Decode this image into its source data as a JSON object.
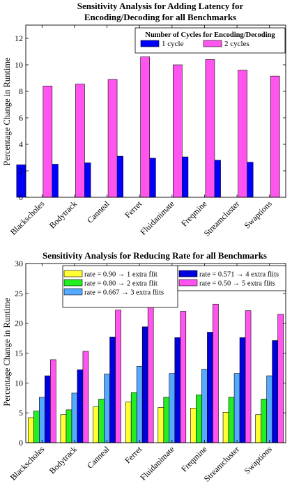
{
  "colors": {
    "axis": "#000000",
    "grid_tick": "#000000",
    "bar_stroke": "#000000"
  },
  "chart_data": [
    {
      "type": "bar",
      "title_lines": [
        "Sensitivity Analysis for Adding Latency for",
        "Encoding/Decoding for all Benchmarks"
      ],
      "xlabel": "",
      "ylabel": "Percentage Change in Runtime",
      "ylim": [
        0,
        13
      ],
      "yticks": [
        0,
        2,
        4,
        6,
        8,
        10,
        12
      ],
      "grid": false,
      "legend_title": "Number of Cycles for Encoding/Decoding",
      "legend_position": "top-right",
      "categories": [
        "Blackscholes",
        "Bodytrack",
        "Canneal",
        "Ferret",
        "Fluidanimate",
        "Freqmine",
        "Streamcluster",
        "Swaptions"
      ],
      "series": [
        {
          "name": "1 cycle",
          "color": "#0000ff",
          "values": [
            2.45,
            2.5,
            2.6,
            3.1,
            2.95,
            3.05,
            2.8,
            2.65
          ]
        },
        {
          "name": "2 cycles",
          "color": "#ff55ee",
          "values": [
            8.4,
            8.55,
            8.9,
            10.6,
            10.0,
            10.4,
            9.6,
            9.15
          ]
        }
      ]
    },
    {
      "type": "bar",
      "title_lines": [
        "Sensitivity Analysis for Reducing Rate for all Benchmarks"
      ],
      "xlabel": "",
      "ylabel": "Percentage Change in Runtime",
      "ylim": [
        0,
        30
      ],
      "yticks": [
        0,
        5,
        10,
        15,
        20,
        25,
        30
      ],
      "grid": false,
      "legend_title": "",
      "legend_position": "top",
      "categories": [
        "Blackscholes",
        "Bodytrack",
        "Canneal",
        "Ferret",
        "Fluidanimate",
        "Freqmine",
        "Streamcluster",
        "Swaptions"
      ],
      "series": [
        {
          "name": "rate = 0.90 → 1 extra flit",
          "color": "#ffff33",
          "values": [
            4.2,
            4.7,
            6.0,
            6.8,
            5.9,
            5.8,
            5.1,
            4.7
          ]
        },
        {
          "name": "rate = 0.80 → 2 extra flit",
          "color": "#22ee22",
          "values": [
            5.3,
            5.5,
            7.3,
            8.4,
            7.6,
            8.0,
            7.6,
            7.3
          ]
        },
        {
          "name": "rate = 0.667 → 3 extra flits",
          "color": "#55aaff",
          "values": [
            7.6,
            8.3,
            11.5,
            12.8,
            11.6,
            12.3,
            11.6,
            11.2
          ]
        },
        {
          "name": "rate = 0.571 → 4 extra flits",
          "color": "#0000dd",
          "values": [
            11.2,
            12.2,
            17.7,
            19.4,
            17.6,
            18.5,
            17.6,
            17.1
          ]
        },
        {
          "name": "rate = 0.50 → 5 extra flits",
          "color": "#ff55ee",
          "values": [
            13.9,
            15.3,
            22.2,
            24.4,
            22.0,
            23.2,
            22.1,
            21.5
          ]
        }
      ]
    }
  ]
}
